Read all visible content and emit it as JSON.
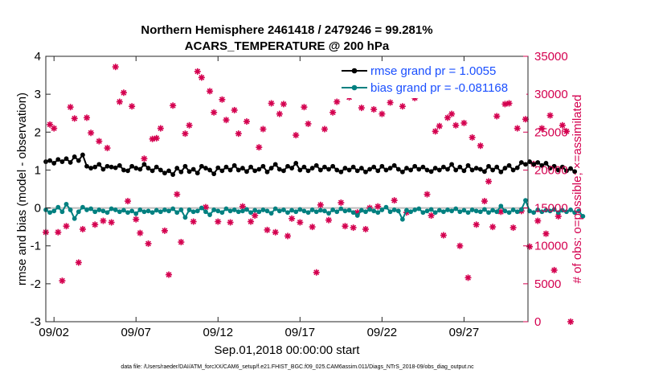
{
  "chart_data": {
    "type": "line",
    "title": "Northern Hemisphere 2461418 / 2479246 = 99.281%",
    "subtitle": "ACARS_TEMPERATURE @ 200 hPa",
    "xlabel": "Sep.01,2018 00:00:00 start",
    "ylabel": "rmse and bias (model - observation)",
    "y2label": "# of obs: o=possible; ×=assimilated",
    "footnote": "data file: /Users/raeder/DAI/ATM_forcXX/CAM6_setup/f.e21.FHIST_BGC.f09_025.CAM6assim.011/Diags_NTrS_2018-09/obs_diag_output.nc",
    "xlim": [
      1.5,
      30.9
    ],
    "ylim": [
      -3,
      4
    ],
    "y2lim": [
      0,
      35000
    ],
    "xticks": [
      2,
      7,
      12,
      17,
      22,
      27
    ],
    "xticklabels": [
      "09/02",
      "09/07",
      "09/12",
      "09/17",
      "09/22",
      "09/27"
    ],
    "yticks": [
      "4",
      "3",
      "2",
      "1",
      "0",
      "-1",
      "-2",
      "-3"
    ],
    "y2ticks": [
      "35000",
      "30000",
      "25000",
      "20000",
      "15000",
      "10000",
      "5000",
      "0"
    ],
    "zero_line": 0,
    "x_start": 1.5,
    "x_step": 0.25,
    "legend": {
      "location": "top-right",
      "entries": [
        "rmse grand pr = 1.0055",
        "bias grand pr = -0.081168"
      ]
    },
    "colors": {
      "rmse": "#000000",
      "bias": "#008080",
      "obs": "#d4004f",
      "legend_text": "#1a4fff",
      "zero_line": "#bbbbbb"
    },
    "series": [
      {
        "name": "rmse",
        "values": [
          1.22,
          1.25,
          1.18,
          1.28,
          1.22,
          1.3,
          1.2,
          1.35,
          1.25,
          1.4,
          1.1,
          1.05,
          1.08,
          1.15,
          1.02,
          1.1,
          1.08,
          1.06,
          1.12,
          1.0,
          0.98,
          1.1,
          1.05,
          1.02,
          1.15,
          1.05,
          0.98,
          1.08,
          1.0,
          0.92,
          0.98,
          0.88,
          1.05,
          0.95,
          1.1,
          0.96,
          1.02,
          0.92,
          1.1,
          1.05,
          1.0,
          0.9,
          1.06,
          0.98,
          1.08,
          1.0,
          1.12,
          1.0,
          1.05,
          0.96,
          1.08,
          0.98,
          1.02,
          1.1,
          0.95,
          1.05,
          1.15,
          1.02,
          0.98,
          1.1,
          1.05,
          1.18,
          1.0,
          1.08,
          0.98,
          1.05,
          1.12,
          1.0,
          1.08,
          1.02,
          1.1,
          1.0,
          0.95,
          1.05,
          1.0,
          1.08,
          0.98,
          1.05,
          0.95,
          1.02,
          1.08,
          0.98,
          1.1,
          1.0,
          1.05,
          1.12,
          1.02,
          0.95,
          1.05,
          1.0,
          1.1,
          1.02,
          1.08,
          1.0,
          0.96,
          1.05,
          1.0,
          1.08,
          1.02,
          1.15,
          1.0,
          1.08,
          0.98,
          1.12,
          1.0,
          1.05,
          1.02,
          0.96,
          1.1,
          1.0,
          1.08,
          0.95,
          1.05,
          1.12,
          1.0,
          1.06,
          1.2,
          1.15,
          1.22,
          1.15,
          1.2,
          1.12,
          1.18,
          1.05,
          1.1,
          1.0,
          1.08,
          0.98,
          1.04,
          0.96
        ]
      },
      {
        "name": "bias",
        "values": [
          -0.05,
          -0.12,
          -0.08,
          0.02,
          -0.1,
          0.1,
          -0.05,
          -0.28,
          -0.1,
          0.02,
          -0.05,
          -0.02,
          -0.1,
          -0.05,
          -0.08,
          -0.12,
          -0.02,
          -0.05,
          -0.1,
          -0.06,
          -0.12,
          -0.08,
          -0.15,
          -0.05,
          -0.1,
          -0.08,
          -0.12,
          -0.06,
          -0.1,
          -0.05,
          -0.08,
          -0.02,
          -0.12,
          -0.05,
          -0.25,
          -0.05,
          -0.1,
          -0.08,
          0.0,
          -0.1,
          -0.18,
          -0.05,
          -0.08,
          -0.12,
          -0.02,
          -0.08,
          -0.05,
          -0.1,
          -0.08,
          -0.04,
          -0.12,
          -0.06,
          -0.1,
          -0.05,
          -0.08,
          -0.14,
          -0.02,
          -0.08,
          -0.05,
          -0.12,
          -0.06,
          -0.1,
          -0.04,
          -0.08,
          -0.12,
          -0.05,
          -0.1,
          -0.06,
          -0.08,
          -0.14,
          -0.05,
          -0.1,
          -0.02,
          -0.08,
          -0.06,
          -0.12,
          -0.2,
          -0.06,
          -0.1,
          -0.04,
          -0.08,
          -0.12,
          -0.05,
          0.02,
          -0.1,
          -0.05,
          -0.08,
          -0.3,
          -0.06,
          -0.1,
          -0.05,
          -0.02,
          -0.12,
          -0.08,
          -0.04,
          -0.12,
          -0.06,
          -0.1,
          -0.05,
          -0.08,
          -0.02,
          -0.1,
          -0.06,
          -0.12,
          -0.05,
          -0.08,
          -0.1,
          -0.04,
          -0.12,
          -0.06,
          -0.1,
          0.05,
          -0.08,
          -0.12,
          -0.05,
          -0.1,
          -0.04,
          0.2,
          -0.08,
          -0.12,
          -0.05,
          -0.1,
          -0.06,
          -0.08,
          -0.04,
          -0.12,
          -0.06,
          -0.1,
          -0.05,
          -0.12,
          -0.08,
          -0.22
        ]
      },
      {
        "name": "obs_count",
        "marker": "asterisk",
        "values": [
          11800,
          26000,
          25500,
          11800,
          5400,
          12600,
          28300,
          26800,
          7800,
          12200,
          26900,
          24900,
          12800,
          23800,
          13300,
          22900,
          13100,
          33600,
          29000,
          30200,
          15900,
          28400,
          13500,
          11700,
          21500,
          10300,
          24100,
          24200,
          25500,
          12000,
          6200,
          28500,
          16800,
          10500,
          24800,
          25900,
          13200,
          33000,
          32200,
          15100,
          30400,
          27600,
          13200,
          29300,
          26600,
          13100,
          27900,
          24800,
          15200,
          26400,
          13200,
          14000,
          23000,
          25400,
          12100,
          28800,
          11800,
          27400,
          28700,
          11300,
          13600,
          24600,
          13100,
          28300,
          26100,
          12500,
          6500,
          15400,
          25400,
          13400,
          27600,
          29000,
          15700,
          12600,
          29600,
          12400,
          14400,
          28200,
          12200,
          15000,
          28000,
          15200,
          27400,
          32500,
          28900,
          16000,
          31900,
          28400,
          14400,
          30300,
          29500,
          30100,
          31700,
          16800,
          14000,
          25100,
          25800,
          11400,
          26900,
          27400,
          25900,
          10000,
          26200,
          5800,
          24300,
          12800,
          23200,
          15900,
          18500,
          12500,
          27100,
          14500,
          28700,
          28800,
          12400,
          25500,
          14600,
          26700,
          9900,
          20800,
          13300,
          25500,
          11600,
          27200,
          6800,
          13900,
          25900,
          25100,
          0
        ]
      }
    ]
  }
}
